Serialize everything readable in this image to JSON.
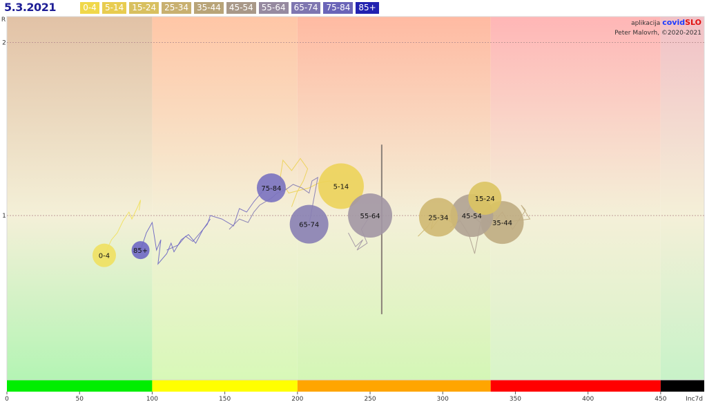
{
  "header": {
    "date": "5.3.2021"
  },
  "legend": [
    {
      "label": "0-4",
      "color": "#f0d84a"
    },
    {
      "label": "5-14",
      "color": "#e8cc50"
    },
    {
      "label": "15-24",
      "color": "#d8c060"
    },
    {
      "label": "25-34",
      "color": "#c8b070"
    },
    {
      "label": "35-44",
      "color": "#b8a478"
    },
    {
      "label": "45-54",
      "color": "#a89888"
    },
    {
      "label": "55-64",
      "color": "#968aa0"
    },
    {
      "label": "65-74",
      "color": "#7e76b0"
    },
    {
      "label": "75-84",
      "color": "#6a64b8"
    },
    {
      "label": "85+",
      "color": "#2222b0"
    }
  ],
  "branding": {
    "prefix": "aplikacija",
    "app_part1": "covid",
    "app_part2": "SLO",
    "author": "Peter Malovrh, ©2020-2021"
  },
  "chart_data": {
    "type": "scatter",
    "title": "",
    "xlabel": "Inc7d",
    "ylabel": "R",
    "xlim": [
      0,
      480
    ],
    "ylim": [
      0.05,
      2.15
    ],
    "x_ticks": [
      0,
      50,
      100,
      150,
      200,
      250,
      300,
      350,
      400,
      450
    ],
    "y_ticks": [
      1,
      2
    ],
    "zones": [
      {
        "from": 0,
        "to": 100,
        "color": "#00ee00"
      },
      {
        "from": 100,
        "to": 200,
        "color": "#ffff00"
      },
      {
        "from": 200,
        "to": 333,
        "color": "#ffa500"
      },
      {
        "from": 333,
        "to": 450,
        "color": "#ff0000"
      },
      {
        "from": 450,
        "to": 480,
        "color": "#000000"
      }
    ],
    "vertical_line": {
      "x": 258,
      "y_from": 0.43,
      "y_to": 1.41
    },
    "points": [
      {
        "label": "0-4",
        "x": 67,
        "r": 0.77,
        "size": 17,
        "color": "#f0e060",
        "trail": [
          [
            67,
            0.77
          ],
          [
            72,
            0.86
          ],
          [
            76,
            0.9
          ],
          [
            80,
            0.97
          ],
          [
            84,
            1.02
          ],
          [
            86,
            0.98
          ],
          [
            90,
            1.05
          ],
          [
            92,
            1.09
          ],
          [
            91,
            1.03
          ]
        ]
      },
      {
        "label": "5-14",
        "x": 230,
        "r": 1.17,
        "size": 33,
        "color": "#ecd35a",
        "trail": [
          [
            196,
            1.05
          ],
          [
            200,
            1.14
          ],
          [
            204,
            1.2
          ],
          [
            207,
            1.27
          ],
          [
            202,
            1.33
          ],
          [
            196,
            1.26
          ],
          [
            190,
            1.32
          ],
          [
            188,
            1.21
          ],
          [
            194,
            1.13
          ],
          [
            208,
            1.16
          ],
          [
            215,
            1.19
          ],
          [
            222,
            1.2
          ],
          [
            228,
            1.18
          ],
          [
            230,
            1.17
          ]
        ]
      },
      {
        "label": "15-24",
        "x": 329,
        "r": 1.1,
        "size": 24,
        "color": "#dcc462",
        "trail": [
          [
            310,
            0.96
          ],
          [
            318,
            1.04
          ],
          [
            322,
            1.12
          ],
          [
            326,
            1.08
          ],
          [
            329,
            1.1
          ],
          [
            332,
            1.06
          ],
          [
            336,
            1.12
          ]
        ]
      },
      {
        "label": "25-34",
        "x": 297,
        "r": 0.99,
        "size": 28,
        "color": "#cfb872",
        "trail": [
          [
            283,
            0.88
          ],
          [
            290,
            0.94
          ],
          [
            294,
            1.0
          ],
          [
            292,
            0.92
          ],
          [
            299,
            1.0
          ],
          [
            306,
            0.96
          ],
          [
            300,
            1.02
          ],
          [
            297,
            0.99
          ]
        ]
      },
      {
        "label": "35-44",
        "x": 341,
        "r": 0.96,
        "size": 31,
        "color": "#bfac82",
        "trail": [
          [
            326,
            1.0
          ],
          [
            334,
            0.95
          ],
          [
            341,
            1.02
          ],
          [
            348,
            0.92
          ],
          [
            352,
            0.97
          ],
          [
            357,
            1.03
          ],
          [
            354,
            1.06
          ],
          [
            360,
            0.98
          ],
          [
            341,
            0.96
          ]
        ]
      },
      {
        "label": "45-54",
        "x": 320,
        "r": 1.0,
        "size": 31,
        "color": "#b0a292",
        "trail": [
          [
            305,
            0.93
          ],
          [
            312,
            0.97
          ],
          [
            318,
            0.89
          ],
          [
            322,
            0.78
          ],
          [
            324,
            0.87
          ],
          [
            326,
            0.96
          ],
          [
            320,
            1.0
          ]
        ]
      },
      {
        "label": "55-64",
        "x": 250,
        "r": 1.0,
        "size": 32,
        "color": "#a296a4",
        "trail": [
          [
            235,
            0.9
          ],
          [
            240,
            0.82
          ],
          [
            245,
            0.86
          ],
          [
            241,
            0.8
          ],
          [
            248,
            0.84
          ],
          [
            244,
            0.92
          ],
          [
            250,
            1.0
          ]
        ]
      },
      {
        "label": "65-74",
        "x": 208,
        "r": 0.95,
        "size": 28,
        "color": "#8880b4",
        "trail": [
          [
            153,
            0.92
          ],
          [
            160,
            0.98
          ],
          [
            166,
            0.96
          ],
          [
            170,
            1.02
          ],
          [
            174,
            1.06
          ],
          [
            182,
            1.1
          ],
          [
            186,
            1.13
          ],
          [
            192,
            1.15
          ],
          [
            197,
            1.18
          ],
          [
            203,
            1.16
          ],
          [
            208,
            1.13
          ],
          [
            210,
            1.2
          ],
          [
            214,
            1.22
          ],
          [
            208,
            0.95
          ]
        ]
      },
      {
        "label": "75-84",
        "x": 182,
        "r": 1.16,
        "size": 21,
        "color": "#7a72c0",
        "trail": [
          [
            110,
            0.8
          ],
          [
            118,
            0.83
          ],
          [
            123,
            0.88
          ],
          [
            128,
            0.85
          ],
          [
            133,
            0.9
          ],
          [
            138,
            0.95
          ],
          [
            140,
            1.0
          ],
          [
            148,
            0.98
          ],
          [
            156,
            0.94
          ],
          [
            160,
            1.04
          ],
          [
            165,
            1.02
          ],
          [
            170,
            1.08
          ],
          [
            176,
            1.14
          ],
          [
            182,
            1.16
          ]
        ]
      },
      {
        "label": "85+",
        "x": 92,
        "r": 0.8,
        "size": 13,
        "color": "#6e68c4",
        "trail": [
          [
            92,
            0.8
          ],
          [
            96,
            0.9
          ],
          [
            100,
            0.96
          ],
          [
            103,
            0.8
          ],
          [
            106,
            0.86
          ],
          [
            104,
            0.72
          ],
          [
            110,
            0.78
          ],
          [
            113,
            0.84
          ],
          [
            115,
            0.79
          ],
          [
            120,
            0.86
          ],
          [
            125,
            0.89
          ],
          [
            130,
            0.84
          ],
          [
            135,
            0.92
          ],
          [
            140,
            0.98
          ]
        ]
      }
    ]
  }
}
